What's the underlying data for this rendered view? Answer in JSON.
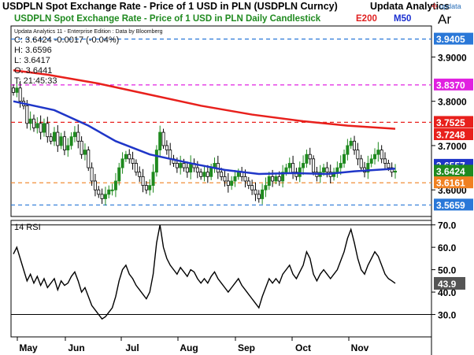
{
  "header": {
    "title": "USDPLN Spot Exchange Rate - Price of 1 USD in PLN (USDPLN Curncy)",
    "brand": "Updata Analytics",
    "logo": "updata",
    "subtitle": "USDPLN Spot Exchange Rate - Price of 1 USD in PLN Daily Candlestick",
    "legend_e200": "E200",
    "legend_m50": "M50",
    "axis_mode": "Ar"
  },
  "ohlc": {
    "credit": "Updata Analytics 11 - Enterprise Edition : Data by Bloomberg",
    "close": "C: 3.6424 -0.0017 (-0.04%)",
    "high": "H: 3.6596",
    "low": "L: 3.6417",
    "open": "O: 3.6441",
    "time": "T: 21:45:33"
  },
  "rsi_label": "14 RSI",
  "colors": {
    "up": "#1f8a1f",
    "down": "#000000",
    "e200": "#e8201c",
    "m50": "#1f36c8",
    "magenta": "#e020e0",
    "blue_lvl": "#2a78d8",
    "orange": "#f08020",
    "last": "#1f8a1f"
  },
  "chart_data": [
    {
      "type": "candlestick",
      "title": "USDPLN Spot Exchange Rate - Price of 1 USD in PLN Daily Candlestick",
      "ylim": [
        3.54,
        3.97
      ],
      "yticks": [
        3.6,
        3.7,
        3.8,
        3.9
      ],
      "xlabels": [
        "May",
        "Jun",
        "Jul",
        "Aug",
        "Sep",
        "Oct",
        "Nov"
      ],
      "closes": [
        3.82,
        3.83,
        3.8,
        3.79,
        3.75,
        3.76,
        3.74,
        3.75,
        3.73,
        3.75,
        3.72,
        3.71,
        3.73,
        3.7,
        3.72,
        3.69,
        3.7,
        3.72,
        3.73,
        3.71,
        3.68,
        3.69,
        3.65,
        3.62,
        3.6,
        3.59,
        3.58,
        3.59,
        3.6,
        3.6,
        3.62,
        3.65,
        3.67,
        3.68,
        3.67,
        3.66,
        3.64,
        3.63,
        3.61,
        3.6,
        3.61,
        3.64,
        3.69,
        3.73,
        3.7,
        3.69,
        3.67,
        3.66,
        3.65,
        3.66,
        3.65,
        3.64,
        3.66,
        3.65,
        3.64,
        3.63,
        3.64,
        3.63,
        3.65,
        3.66,
        3.64,
        3.63,
        3.62,
        3.61,
        3.62,
        3.63,
        3.64,
        3.63,
        3.62,
        3.61,
        3.6,
        3.59,
        3.58,
        3.6,
        3.61,
        3.63,
        3.62,
        3.63,
        3.62,
        3.64,
        3.65,
        3.66,
        3.64,
        3.63,
        3.65,
        3.66,
        3.68,
        3.67,
        3.64,
        3.63,
        3.64,
        3.65,
        3.64,
        3.63,
        3.64,
        3.65,
        3.66,
        3.68,
        3.7,
        3.71,
        3.69,
        3.67,
        3.65,
        3.64,
        3.66,
        3.67,
        3.68,
        3.69,
        3.67,
        3.66,
        3.65,
        3.64,
        3.6424
      ],
      "e200_points": [
        [
          0,
          3.87
        ],
        [
          10,
          3.86
        ],
        [
          25,
          3.84
        ],
        [
          40,
          3.815
        ],
        [
          55,
          3.79
        ],
        [
          70,
          3.77
        ],
        [
          85,
          3.755
        ],
        [
          98,
          3.745
        ],
        [
          112,
          3.738
        ]
      ],
      "m50_points": [
        [
          0,
          3.8
        ],
        [
          12,
          3.78
        ],
        [
          22,
          3.745
        ],
        [
          30,
          3.71
        ],
        [
          40,
          3.68
        ],
        [
          52,
          3.66
        ],
        [
          62,
          3.645
        ],
        [
          72,
          3.636
        ],
        [
          82,
          3.638
        ],
        [
          92,
          3.636
        ],
        [
          100,
          3.642
        ],
        [
          112,
          3.648
        ]
      ],
      "levels": [
        {
          "value": 3.9405,
          "label": "3.9405",
          "style": "dashed",
          "color": "#2a78d8"
        },
        {
          "value": 3.837,
          "label": "3.8370",
          "style": "dashed",
          "color": "#e020e0"
        },
        {
          "value": 3.7525,
          "label": "3.7525",
          "style": "dashed",
          "color": "#e8201c"
        },
        {
          "value": 3.7248,
          "label": "3.7248",
          "style": "none",
          "color": "#e8201c"
        },
        {
          "value": 3.6557,
          "label": "3.6557",
          "style": "none",
          "color": "#1f36c8"
        },
        {
          "value": 3.6424,
          "label": "3.6424",
          "style": "none",
          "color": "#1f8a1f"
        },
        {
          "value": 3.6161,
          "label": "3.6161",
          "style": "dashed",
          "color": "#f08020"
        },
        {
          "value": 3.5659,
          "label": "3.5659",
          "style": "dashed",
          "color": "#2a78d8"
        }
      ]
    },
    {
      "type": "line",
      "title": "14 RSI",
      "ylim": [
        20,
        72
      ],
      "yticks": [
        30.0,
        40.0,
        50.0,
        60.0,
        70.0
      ],
      "yticklabels": [
        "30.0",
        "40.0",
        "50.0",
        "60.0",
        "70.0"
      ],
      "reference_lines": [
        70,
        30
      ],
      "last_label": "43.9",
      "values": [
        57,
        60,
        55,
        50,
        45,
        48,
        44,
        47,
        43,
        46,
        42,
        44,
        46,
        41,
        45,
        43,
        44,
        47,
        49,
        45,
        40,
        42,
        38,
        34,
        32,
        30,
        28,
        29,
        31,
        33,
        38,
        45,
        50,
        52,
        48,
        46,
        43,
        41,
        39,
        37,
        40,
        48,
        62,
        70,
        60,
        55,
        52,
        50,
        48,
        51,
        49,
        47,
        50,
        49,
        46,
        44,
        46,
        44,
        47,
        49,
        46,
        44,
        42,
        40,
        42,
        44,
        46,
        43,
        41,
        39,
        37,
        35,
        33,
        38,
        42,
        46,
        44,
        46,
        44,
        48,
        50,
        52,
        48,
        46,
        49,
        52,
        58,
        55,
        48,
        45,
        48,
        50,
        48,
        46,
        48,
        50,
        54,
        58,
        64,
        68,
        62,
        55,
        50,
        48,
        52,
        55,
        58,
        56,
        52,
        48,
        46,
        45,
        43.9
      ]
    }
  ]
}
